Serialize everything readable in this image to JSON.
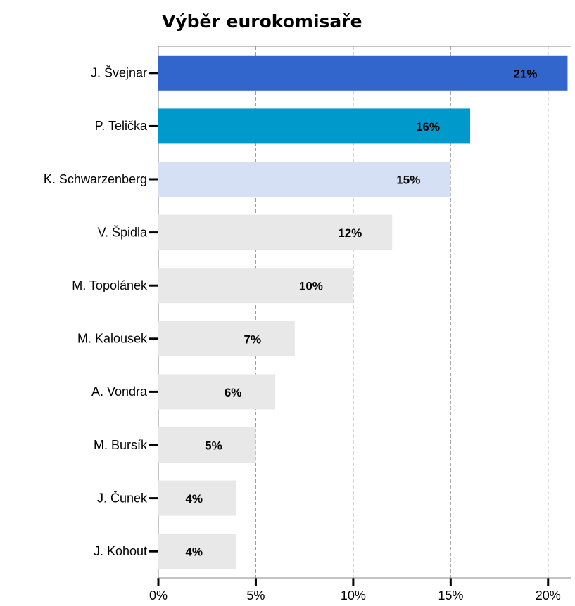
{
  "chart_data": {
    "type": "barh",
    "title": "Výběr eurokomisaře",
    "categories": [
      "J. Švejnar",
      "P. Telička",
      "K. Schwarzenberg",
      "V. Špidla",
      "M. Topolánek",
      "M. Kalousek",
      "A. Vondra",
      "M. Bursík",
      "J. Čunek",
      "J. Kohout"
    ],
    "values": [
      21,
      16,
      15,
      12,
      10,
      7,
      6,
      5,
      4,
      4
    ],
    "value_labels": [
      "21%",
      "16%",
      "15%",
      "12%",
      "10%",
      "7%",
      "6%",
      "5%",
      "4%",
      "4%"
    ],
    "colors": [
      "#3366cc",
      "#0099cc",
      "#d6e0f5",
      "#e8e8e8",
      "#e8e8e8",
      "#e8e8e8",
      "#e8e8e8",
      "#e8e8e8",
      "#e8e8e8",
      "#e8e8e8"
    ],
    "xlim": [
      0,
      21.2
    ],
    "xticks": [
      {
        "value": 0,
        "label": "0%"
      },
      {
        "value": 5,
        "label": "5%"
      },
      {
        "value": 10,
        "label": "10%"
      },
      {
        "value": 15,
        "label": "15%"
      },
      {
        "value": 20,
        "label": "20%"
      }
    ],
    "grid": true
  }
}
